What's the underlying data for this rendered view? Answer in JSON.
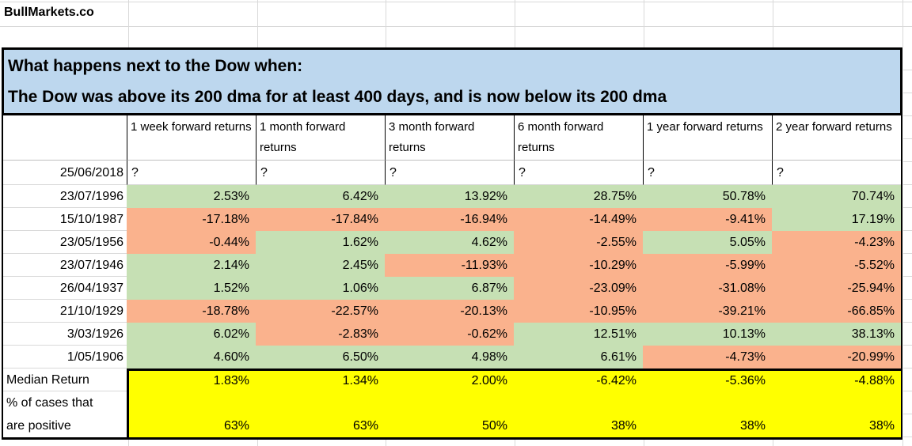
{
  "brand": "BullMarkets.co",
  "title": {
    "line1": "What happens next to the Dow when:",
    "line2": "The Dow was above its 200 dma for at least 400 days, and is now below its 200 dma"
  },
  "table": {
    "columns": [
      "1 week forward returns",
      "1 month forward returns",
      "3 month forward returns",
      "6 month forward returns",
      "1 year forward returns",
      "2 year forward returns"
    ],
    "pending_row": {
      "date": "25/06/2018",
      "values": [
        "?",
        "?",
        "?",
        "?",
        "?",
        "?"
      ]
    },
    "rows": [
      {
        "date": "23/07/1996",
        "values": [
          "2.53%",
          "6.42%",
          "13.92%",
          "28.75%",
          "50.78%",
          "70.74%"
        ]
      },
      {
        "date": "15/10/1987",
        "values": [
          "-17.18%",
          "-17.84%",
          "-16.94%",
          "-14.49%",
          "-9.41%",
          "17.19%"
        ]
      },
      {
        "date": "23/05/1956",
        "values": [
          "-0.44%",
          "1.62%",
          "4.62%",
          "-2.55%",
          "5.05%",
          "-4.23%"
        ]
      },
      {
        "date": "23/07/1946",
        "values": [
          "2.14%",
          "2.45%",
          "-11.93%",
          "-10.29%",
          "-5.99%",
          "-5.52%"
        ]
      },
      {
        "date": "26/04/1937",
        "values": [
          "1.52%",
          "1.06%",
          "6.87%",
          "-23.09%",
          "-31.08%",
          "-25.94%"
        ]
      },
      {
        "date": "21/10/1929",
        "values": [
          "-18.78%",
          "-22.57%",
          "-20.13%",
          "-10.95%",
          "-39.21%",
          "-66.85%"
        ]
      },
      {
        "date": "3/03/1926",
        "values": [
          "6.02%",
          "-2.83%",
          "-0.62%",
          "12.51%",
          "10.13%",
          "38.13%"
        ]
      },
      {
        "date": "1/05/1906",
        "values": [
          "4.60%",
          "6.50%",
          "4.98%",
          "6.61%",
          "-4.73%",
          "-20.99%"
        ]
      }
    ],
    "median": {
      "label": "Median Return",
      "values": [
        "1.83%",
        "1.34%",
        "2.00%",
        "-6.42%",
        "-5.36%",
        "-4.88%"
      ]
    },
    "positive": {
      "label_line1": "% of cases that",
      "label_line2": "are positive",
      "values": [
        "63%",
        "63%",
        "50%",
        "38%",
        "38%",
        "38%"
      ]
    }
  },
  "colors": {
    "positive_fill": "#c6e0b4",
    "negative_fill": "#fab28d",
    "summary_fill": "#ffff00",
    "title_fill": "#bdd7ee",
    "gridline": "#d9d9d9"
  }
}
